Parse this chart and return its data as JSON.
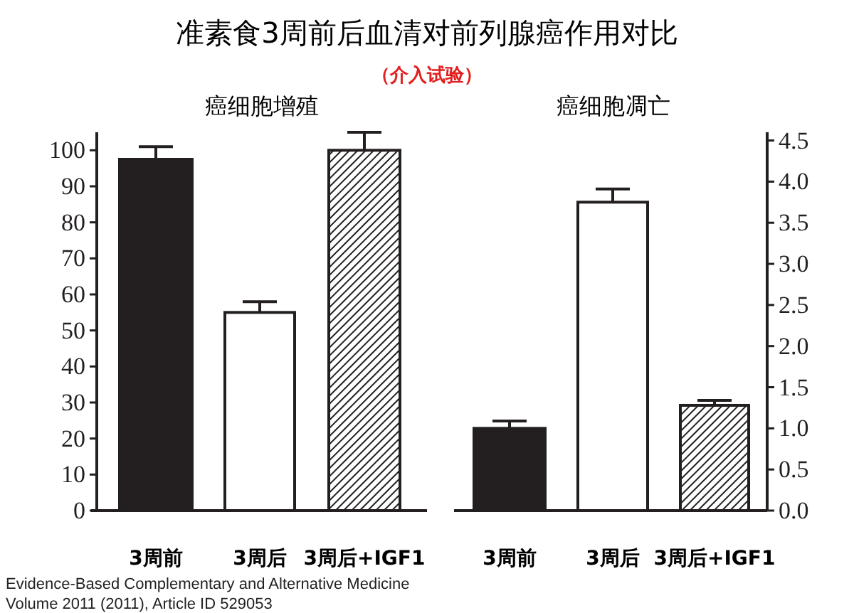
{
  "chart_data": [
    {
      "type": "other",
      "title": "准素食3周前后血清对前列腺癌作用对比",
      "subtitle": "（介入试验）",
      "annotations": [
        "Evidence-Based Complementary and Alternative Medicine",
        "Volume 2011 (2011), Article ID 529053"
      ]
    },
    {
      "type": "bar",
      "title": "癌细胞增殖",
      "categories": [
        "3周前",
        "3周后",
        "3周后+IGF1"
      ],
      "values": [
        97.5,
        55,
        100
      ],
      "errors": [
        [
          97.5,
          101
        ],
        [
          55,
          58
        ],
        [
          100,
          105
        ]
      ],
      "colors": [
        "#231f20",
        "#ffffff",
        "#231f20"
      ],
      "ylim": [
        0,
        105
      ],
      "yticks": [
        0,
        10,
        20,
        30,
        40,
        50,
        60,
        70,
        80,
        90,
        100
      ]
    },
    {
      "type": "bar",
      "title": "癌细胞凋亡",
      "categories": [
        "3周前",
        "3周后",
        "3周后+IGF1"
      ],
      "series": [
        {
          "axis": "y2",
          "values": [
            1.0,
            3.75,
            1.28
          ],
          "errors": [
            [
              1.0,
              1.09
            ],
            [
              3.75,
              3.91
            ],
            [
              1.28,
              1.34
            ]
          ],
          "colors": [
            "#231f20",
            "#ffffff",
            "#231f20"
          ]
        }
      ],
      "y2lim": [
        0,
        4.6
      ],
      "y2ticks": [
        {
          "value": 0,
          "label": "0.0"
        },
        {
          "value": 0.5,
          "label": "0.5"
        },
        {
          "value": 1,
          "label": "1.0"
        },
        {
          "value": 1.5,
          "label": "1.5"
        },
        {
          "value": 2,
          "label": "2.0"
        },
        {
          "value": 2.5,
          "label": "2.5"
        },
        {
          "value": 3,
          "label": "3.0"
        },
        {
          "value": 3.5,
          "label": "3.5"
        },
        {
          "value": 4,
          "label": "4.0"
        },
        {
          "value": 4.5,
          "label": "4.5"
        }
      ]
    }
  ]
}
